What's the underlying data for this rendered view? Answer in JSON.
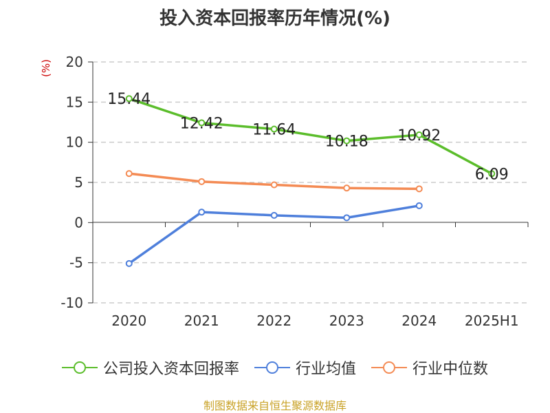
{
  "header": {
    "title": "投入资本回报率历年情况(%)"
  },
  "axis": {
    "unit_label": "(%)"
  },
  "legend": {
    "items": [
      {
        "label": "公司投入资本回报率",
        "color": "#5bbd2b"
      },
      {
        "label": "行业均值",
        "color": "#4e7fdb"
      },
      {
        "label": "行业中位数",
        "color": "#f48b54"
      }
    ]
  },
  "footer": {
    "source": "制图数据来自恒生聚源数据库"
  },
  "chart_data": {
    "type": "line",
    "categories": [
      "2020",
      "2021",
      "2022",
      "2023",
      "2024",
      "2025H1"
    ],
    "ylim": [
      -10,
      20
    ],
    "yticks": [
      20,
      15,
      10,
      5,
      0,
      -5,
      -10
    ],
    "ylabel": "(%)",
    "xlabel": "",
    "grid": true,
    "legend_position": "bottom",
    "series": [
      {
        "name": "公司投入资本回报率",
        "color": "#5bbd2b",
        "values": [
          15.44,
          12.42,
          11.64,
          10.18,
          10.92,
          6.09
        ],
        "labels": [
          "15.44",
          "12.42",
          "11.64",
          "10.18",
          "10.92",
          "6.09"
        ]
      },
      {
        "name": "行业均值",
        "color": "#4e7fdb",
        "values": [
          -5.1,
          1.3,
          0.9,
          0.6,
          2.1,
          null
        ]
      },
      {
        "name": "行业中位数",
        "color": "#f48b54",
        "values": [
          6.1,
          5.1,
          4.7,
          4.3,
          4.2,
          null
        ]
      }
    ]
  }
}
